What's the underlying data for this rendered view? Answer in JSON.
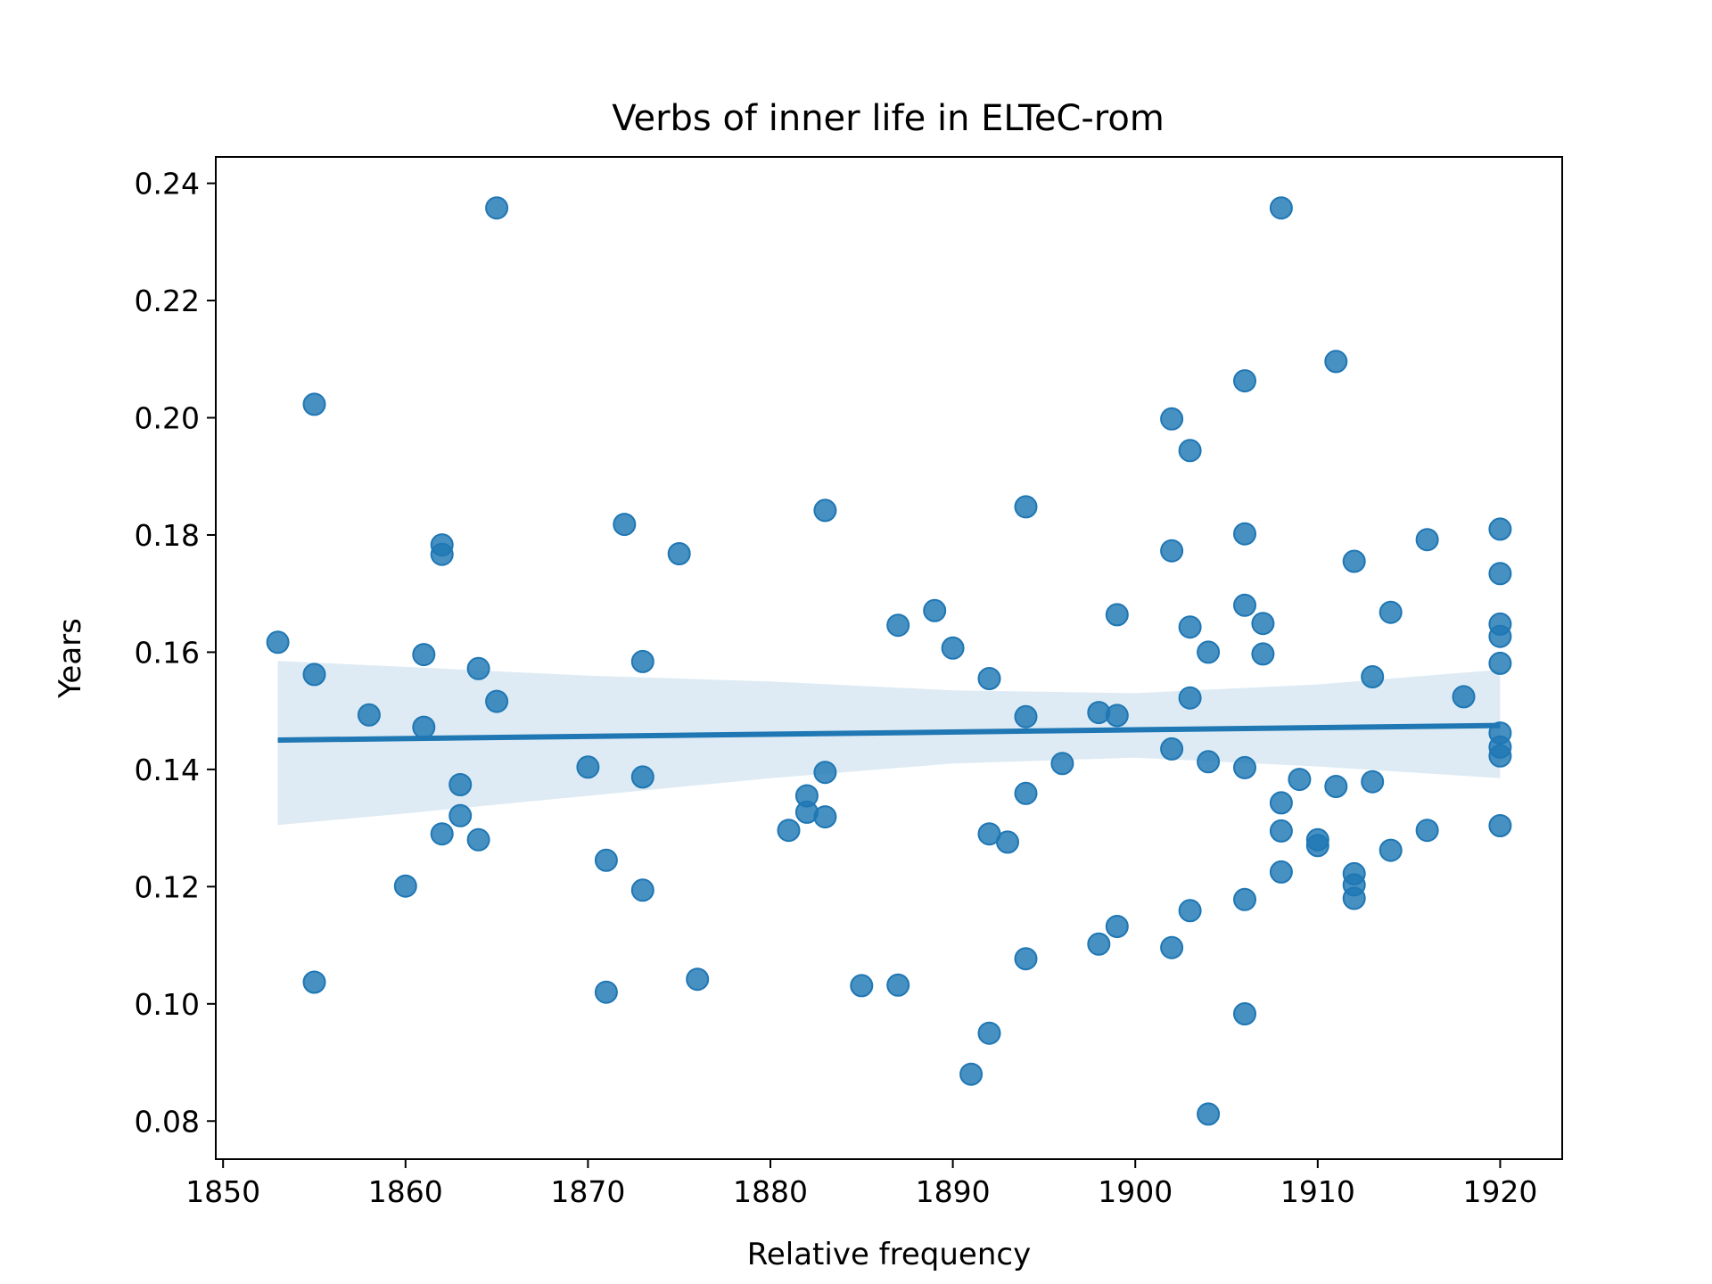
{
  "chart_data": {
    "type": "scatter",
    "title": "Verbs of inner life in ELTeC-rom",
    "xlabel": "Relative frequency",
    "ylabel": "Years",
    "xlim": [
      1849.6,
      1923.4
    ],
    "ylim": [
      0.0735,
      0.2445
    ],
    "xticks": [
      1850,
      1860,
      1870,
      1880,
      1890,
      1900,
      1910,
      1920
    ],
    "xtick_labels": [
      "1850",
      "1860",
      "1870",
      "1880",
      "1890",
      "1900",
      "1910",
      "1920"
    ],
    "yticks": [
      0.08,
      0.1,
      0.12,
      0.14,
      0.16,
      0.18,
      0.2,
      0.22,
      0.24
    ],
    "ytick_labels": [
      "0.08",
      "0.10",
      "0.12",
      "0.14",
      "0.16",
      "0.18",
      "0.20",
      "0.22",
      "0.24"
    ],
    "grid": false,
    "colors": {
      "points": "#1f77b4",
      "fit_line": "#1f77b4",
      "band": "#1f77b4"
    },
    "regression": {
      "x": [
        1853,
        1920
      ],
      "y": [
        0.145,
        0.1475
      ],
      "ci_x": [
        1853,
        1860,
        1870,
        1880,
        1890,
        1900,
        1910,
        1920
      ],
      "ci_lower": [
        0.1305,
        0.1325,
        0.1355,
        0.1385,
        0.141,
        0.142,
        0.1405,
        0.1385
      ],
      "ci_upper": [
        0.1585,
        0.1575,
        0.156,
        0.155,
        0.1535,
        0.153,
        0.1545,
        0.157
      ]
    },
    "points": [
      [
        1853,
        0.1617
      ],
      [
        1855,
        0.2023
      ],
      [
        1855,
        0.1562
      ],
      [
        1855,
        0.1037
      ],
      [
        1858,
        0.1493
      ],
      [
        1860,
        0.1201
      ],
      [
        1861,
        0.1596
      ],
      [
        1861,
        0.1472
      ],
      [
        1862,
        0.1783
      ],
      [
        1862,
        0.1767
      ],
      [
        1862,
        0.129
      ],
      [
        1863,
        0.1374
      ],
      [
        1863,
        0.1321
      ],
      [
        1864,
        0.1572
      ],
      [
        1864,
        0.128
      ],
      [
        1865,
        0.2358
      ],
      [
        1865,
        0.1516
      ],
      [
        1870,
        0.1404
      ],
      [
        1871,
        0.1245
      ],
      [
        1871,
        0.102
      ],
      [
        1872,
        0.1818
      ],
      [
        1873,
        0.1584
      ],
      [
        1873,
        0.1387
      ],
      [
        1873,
        0.1194
      ],
      [
        1875,
        0.1768
      ],
      [
        1876,
        0.1042
      ],
      [
        1881,
        0.1296
      ],
      [
        1882,
        0.1355
      ],
      [
        1882,
        0.1327
      ],
      [
        1883,
        0.1842
      ],
      [
        1883,
        0.1395
      ],
      [
        1883,
        0.1319
      ],
      [
        1885,
        0.1031
      ],
      [
        1887,
        0.1646
      ],
      [
        1887,
        0.1032
      ],
      [
        1889,
        0.1671
      ],
      [
        1890,
        0.1607
      ],
      [
        1891,
        0.088
      ],
      [
        1892,
        0.1555
      ],
      [
        1892,
        0.129
      ],
      [
        1892,
        0.095
      ],
      [
        1893,
        0.1276
      ],
      [
        1894,
        0.1848
      ],
      [
        1894,
        0.149
      ],
      [
        1894,
        0.1359
      ],
      [
        1894,
        0.1077
      ],
      [
        1896,
        0.141
      ],
      [
        1898,
        0.1497
      ],
      [
        1898,
        0.1102
      ],
      [
        1899,
        0.1664
      ],
      [
        1899,
        0.1492
      ],
      [
        1899,
        0.1132
      ],
      [
        1902,
        0.1998
      ],
      [
        1902,
        0.1773
      ],
      [
        1902,
        0.1435
      ],
      [
        1902,
        0.1096
      ],
      [
        1903,
        0.1944
      ],
      [
        1903,
        0.1643
      ],
      [
        1903,
        0.1522
      ],
      [
        1903,
        0.1159
      ],
      [
        1904,
        0.16
      ],
      [
        1904,
        0.1413
      ],
      [
        1904,
        0.0812
      ],
      [
        1906,
        0.2063
      ],
      [
        1906,
        0.1802
      ],
      [
        1906,
        0.168
      ],
      [
        1906,
        0.1403
      ],
      [
        1906,
        0.1178
      ],
      [
        1906,
        0.0983
      ],
      [
        1907,
        0.1649
      ],
      [
        1907,
        0.1597
      ],
      [
        1908,
        0.2358
      ],
      [
        1908,
        0.1343
      ],
      [
        1908,
        0.1295
      ],
      [
        1908,
        0.1225
      ],
      [
        1909,
        0.1383
      ],
      [
        1910,
        0.128
      ],
      [
        1910,
        0.127
      ],
      [
        1911,
        0.2096
      ],
      [
        1911,
        0.1371
      ],
      [
        1912,
        0.1755
      ],
      [
        1912,
        0.1222
      ],
      [
        1912,
        0.1203
      ],
      [
        1912,
        0.118
      ],
      [
        1913,
        0.1558
      ],
      [
        1913,
        0.1379
      ],
      [
        1914,
        0.1668
      ],
      [
        1914,
        0.1262
      ],
      [
        1916,
        0.1792
      ],
      [
        1916,
        0.1296
      ],
      [
        1918,
        0.1524
      ],
      [
        1920,
        0.181
      ],
      [
        1920,
        0.1734
      ],
      [
        1920,
        0.1648
      ],
      [
        1920,
        0.1627
      ],
      [
        1920,
        0.1581
      ],
      [
        1920,
        0.1462
      ],
      [
        1920,
        0.1438
      ],
      [
        1920,
        0.1423
      ],
      [
        1920,
        0.1304
      ]
    ]
  }
}
